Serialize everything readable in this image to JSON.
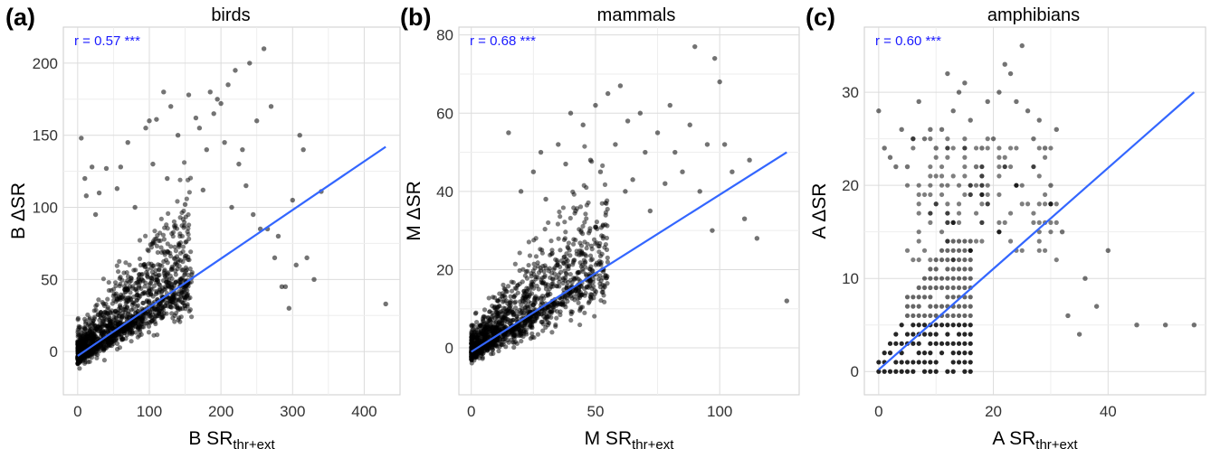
{
  "chart_data": [
    {
      "type": "scatter",
      "panel_label": "(a)",
      "title": "birds",
      "xlabel": "B SR",
      "xlabel_sub": "thr+ext",
      "ylabel": "B ΔSR",
      "annotation": "r = 0.57 ***",
      "xlim": [
        -20,
        450
      ],
      "ylim": [
        -30,
        225
      ],
      "xticks": [
        0,
        100,
        200,
        300,
        400
      ],
      "yticks": [
        0,
        50,
        100,
        150,
        200
      ],
      "fit_line": {
        "x": [
          0,
          430
        ],
        "y": [
          -3,
          142
        ]
      },
      "point_cloud": {
        "x_range": [
          0,
          160
        ],
        "n": 1500
      },
      "points": {
        "x": [
          5,
          10,
          12,
          20,
          25,
          30,
          40,
          55,
          60,
          70,
          80,
          95,
          100,
          105,
          110,
          120,
          125,
          130,
          140,
          150,
          155,
          165,
          170,
          175,
          180,
          185,
          190,
          195,
          200,
          205,
          210,
          215,
          220,
          225,
          230,
          235,
          240,
          245,
          250,
          255,
          260,
          265,
          270,
          275,
          280,
          285,
          290,
          295,
          300,
          305,
          310,
          315,
          320,
          330,
          340,
          430
        ],
        "y": [
          148,
          120,
          108,
          128,
          95,
          110,
          127,
          113,
          128,
          145,
          100,
          155,
          160,
          130,
          161,
          180,
          120,
          170,
          150,
          102,
          178,
          162,
          155,
          112,
          140,
          180,
          165,
          175,
          172,
          145,
          185,
          100,
          195,
          130,
          140,
          115,
          200,
          95,
          160,
          85,
          210,
          85,
          170,
          65,
          80,
          45,
          45,
          30,
          105,
          60,
          150,
          140,
          65,
          50,
          111,
          33
        ]
      }
    },
    {
      "type": "scatter",
      "panel_label": "(b)",
      "title": "mammals",
      "xlabel": "M SR",
      "xlabel_sub": "thr+ext",
      "ylabel": "M ΔSR",
      "annotation": "r = 0.68 ***",
      "xlim": [
        -5,
        132
      ],
      "ylim": [
        -12,
        82
      ],
      "xticks": [
        0,
        50,
        100
      ],
      "yticks": [
        0,
        20,
        40,
        60,
        80
      ],
      "fit_line": {
        "x": [
          0,
          127
        ],
        "y": [
          -1,
          50
        ]
      },
      "point_cloud": {
        "x_range": [
          0,
          55
        ],
        "n": 1400
      },
      "points": {
        "x": [
          15,
          20,
          25,
          28,
          30,
          35,
          38,
          40,
          42,
          45,
          48,
          50,
          52,
          55,
          58,
          60,
          62,
          63,
          65,
          68,
          70,
          72,
          75,
          78,
          80,
          82,
          85,
          88,
          90,
          92,
          95,
          97,
          98,
          100,
          102,
          105,
          110,
          112,
          115,
          127
        ],
        "y": [
          55,
          40,
          45,
          50,
          38,
          52,
          47,
          60,
          35,
          57,
          48,
          62,
          45,
          65,
          52,
          67,
          40,
          58,
          43,
          60,
          50,
          35,
          55,
          42,
          62,
          50,
          45,
          57,
          77,
          40,
          52,
          30,
          74,
          68,
          52,
          45,
          33,
          48,
          28,
          12
        ]
      }
    },
    {
      "type": "scatter",
      "panel_label": "(c)",
      "title": "amphibians",
      "xlabel": "A SR",
      "xlabel_sub": "thr+ext",
      "ylabel": "A ΔSR",
      "annotation": "r = 0.60 ***",
      "xlim": [
        -2.5,
        57
      ],
      "ylim": [
        -2.5,
        37
      ],
      "xticks": [
        0,
        20,
        40
      ],
      "yticks": [
        0,
        10,
        20,
        30
      ],
      "fit_line": {
        "x": [
          0,
          55
        ],
        "y": [
          0.2,
          30
        ]
      },
      "point_cloud": {
        "x_range": [
          0,
          16
        ],
        "n": 0
      },
      "points": {
        "x": [
          0,
          1,
          2,
          3,
          4,
          5,
          6,
          7,
          8,
          9,
          10,
          11,
          12,
          13,
          14,
          15,
          16,
          17,
          18,
          19,
          20,
          21,
          22,
          23,
          24,
          25,
          26,
          27,
          28,
          29,
          30,
          31,
          32,
          33,
          35,
          36,
          38,
          40,
          45,
          50,
          55
        ],
        "y": [
          28,
          24,
          23,
          22,
          26,
          22,
          25,
          29,
          25,
          26,
          24,
          26,
          32,
          28,
          30,
          31,
          27,
          22,
          24,
          29,
          25,
          30,
          33,
          32,
          29,
          35,
          28,
          25,
          27,
          24,
          20,
          26,
          15,
          6,
          4,
          10,
          7,
          13,
          5,
          5,
          5
        ]
      }
    }
  ]
}
